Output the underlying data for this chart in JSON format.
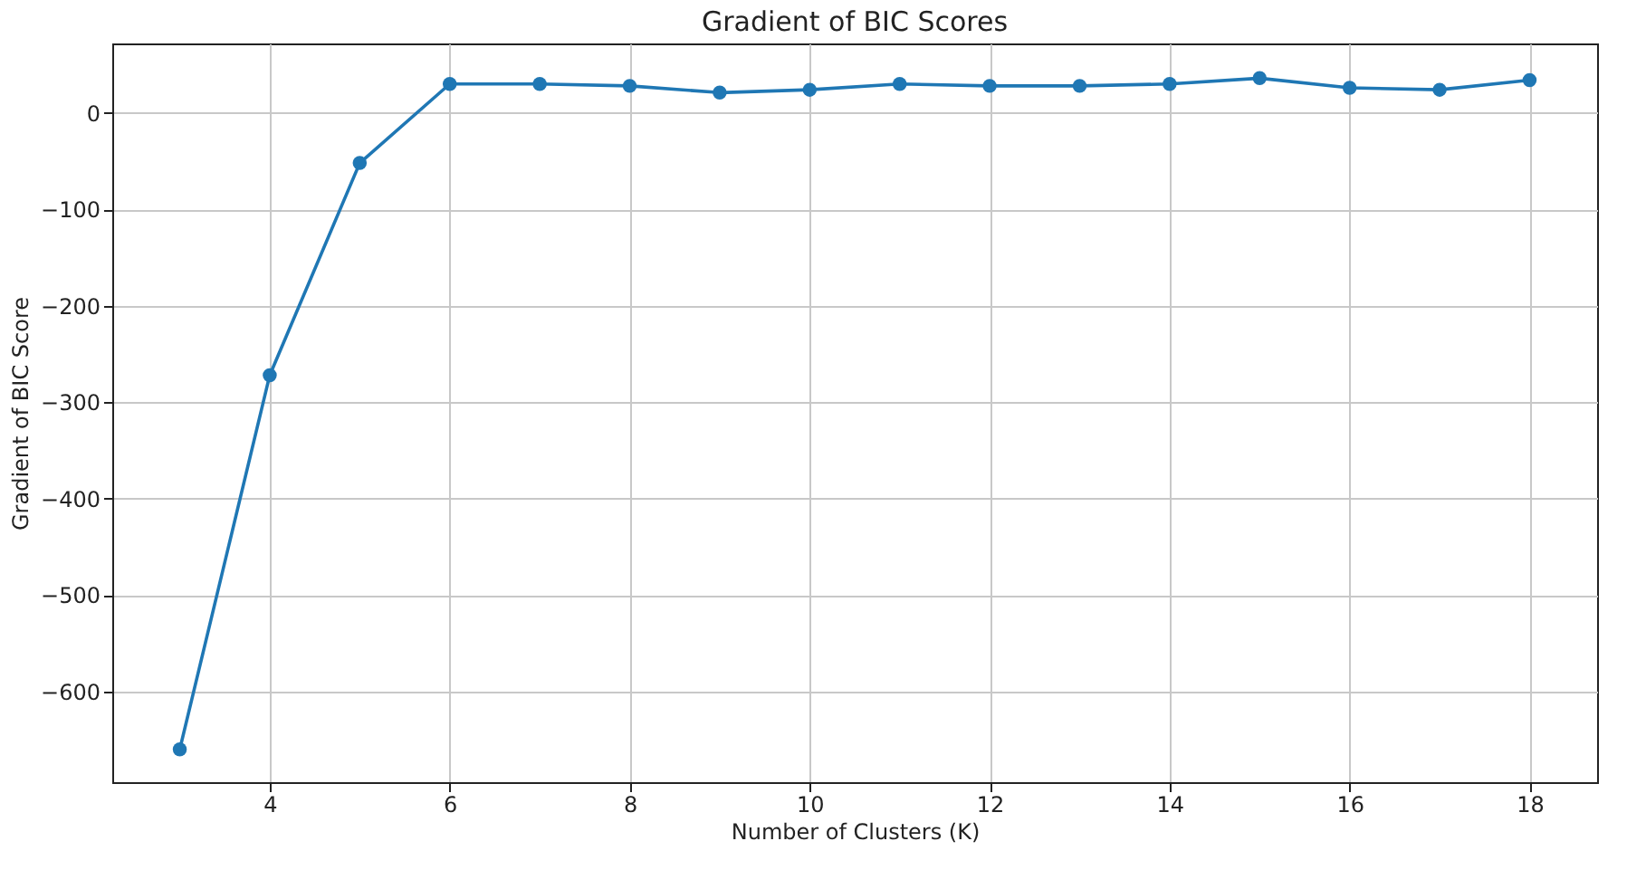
{
  "chart_data": {
    "type": "line",
    "title": "Gradient of BIC Scores",
    "xlabel": "Number of Clusters (K)",
    "ylabel": "Gradient of BIC Score",
    "x": [
      3,
      4,
      5,
      6,
      7,
      8,
      9,
      10,
      11,
      12,
      13,
      14,
      15,
      16,
      17,
      18
    ],
    "series": [
      {
        "color": "#1f77b4",
        "values": [
          -660,
          -272,
          -52,
          30,
          30,
          28,
          21,
          24,
          30,
          28,
          28,
          30,
          36,
          26,
          24,
          34
        ]
      }
    ],
    "xlim": [
      2.25,
      18.75
    ],
    "xticks": [
      4,
      6,
      8,
      10,
      12,
      14,
      16,
      18
    ],
    "ylim": [
      -694,
      72
    ],
    "yticks": [
      -600,
      -500,
      -400,
      -300,
      -200,
      -100,
      0
    ],
    "grid": true,
    "marker": "circle",
    "line_style": "solid"
  }
}
